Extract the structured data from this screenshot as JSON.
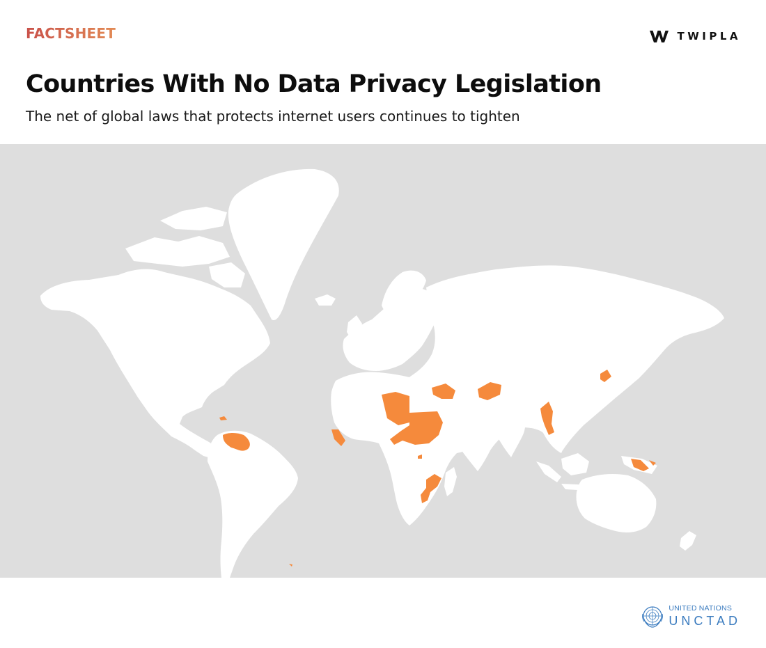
{
  "header": {
    "label": "FACTSHEET",
    "label_colors": [
      "#c9514a",
      "#e28a55"
    ],
    "brand_name": "TWIPLA",
    "brand_icon": "twipla-w-logo"
  },
  "title": "Countries With No Data Privacy Legislation",
  "subtitle": "The net of global laws that protects internet users continues to tighten",
  "map": {
    "projection": "world map",
    "ocean_color": "#dedede",
    "land_color": "#ffffff",
    "highlight_color": "#f58a3c",
    "highlighted_regions": [
      "haiti",
      "venezuela",
      "libya",
      "chad",
      "sudan",
      "south-sudan",
      "iraq",
      "afghanistan",
      "myanmar",
      "north-korea",
      "papua-new-guinea",
      "liberia",
      "sierra-leone",
      "burundi",
      "mozambique",
      "malawi",
      "south-atlantic-island"
    ]
  },
  "source": {
    "line1": "UNITED NATIONS",
    "line2": "UNCTAD",
    "icon": "un-emblem-icon",
    "color": "#3a7bbf"
  }
}
